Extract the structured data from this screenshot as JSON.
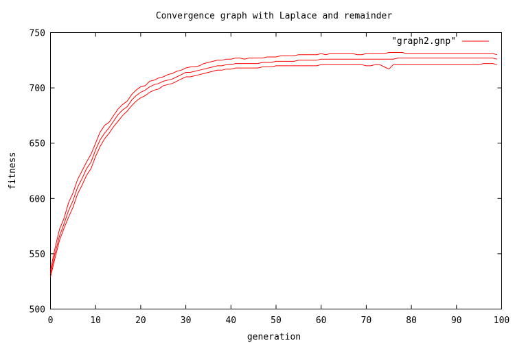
{
  "chart_data": {
    "type": "line",
    "title": "Convergence graph with Laplace and remainder",
    "xlabel": "generation",
    "ylabel": "fitness",
    "xlim": [
      0,
      100
    ],
    "ylim": [
      500,
      750
    ],
    "xticks": [
      0,
      10,
      20,
      30,
      40,
      50,
      60,
      70,
      80,
      90,
      100
    ],
    "yticks": [
      500,
      550,
      600,
      650,
      700,
      750
    ],
    "grid": false,
    "legend_position": "top-right",
    "line_color": "#ff0000",
    "series": [
      {
        "name": "\"graph2.gnp\"",
        "x": [
          0,
          1,
          2,
          3,
          4,
          5,
          6,
          7,
          8,
          9,
          10,
          11,
          12,
          13,
          14,
          15,
          16,
          17,
          18,
          19,
          20,
          21,
          22,
          23,
          24,
          25,
          26,
          27,
          28,
          29,
          30,
          31,
          32,
          33,
          34,
          35,
          36,
          37,
          38,
          39,
          40,
          41,
          42,
          43,
          44,
          45,
          46,
          47,
          48,
          49,
          50,
          51,
          52,
          53,
          54,
          55,
          56,
          57,
          58,
          59,
          60,
          61,
          62,
          63,
          64,
          65,
          66,
          67,
          68,
          69,
          70,
          71,
          72,
          73,
          74,
          75,
          76,
          77,
          78,
          79,
          80,
          81,
          82,
          83,
          84,
          85,
          86,
          87,
          88,
          89,
          90,
          91,
          92,
          93,
          94,
          95,
          96,
          97,
          98,
          99
        ],
        "upper": [
          535,
          555,
          572,
          582,
          596,
          605,
          617,
          625,
          633,
          640,
          650,
          660,
          666,
          669,
          675,
          681,
          685,
          688,
          694,
          698,
          701,
          702,
          706,
          707,
          709,
          710,
          712,
          713,
          715,
          716,
          718,
          719,
          719,
          720,
          722,
          723,
          724,
          725,
          725,
          726,
          726,
          727,
          727,
          726,
          727,
          727,
          727,
          727,
          728,
          728,
          728,
          729,
          729,
          729,
          729,
          730,
          730,
          730,
          730,
          730,
          731,
          730,
          731,
          731,
          731,
          731,
          731,
          731,
          730,
          730,
          731,
          731,
          731,
          731,
          731,
          732,
          732,
          732,
          732,
          731,
          731,
          731,
          731,
          731,
          731,
          731,
          731,
          731,
          731,
          731,
          731,
          731,
          731,
          731,
          731,
          731,
          731,
          731,
          731,
          730
        ],
        "mean": [
          532,
          550,
          566,
          577,
          589,
          598,
          610,
          618,
          627,
          633,
          644,
          653,
          659,
          664,
          670,
          676,
          680,
          683,
          689,
          693,
          696,
          698,
          701,
          703,
          704,
          706,
          707,
          708,
          710,
          712,
          714,
          714,
          715,
          716,
          717,
          718,
          719,
          720,
          720,
          721,
          721,
          722,
          722,
          722,
          722,
          722,
          722,
          723,
          723,
          723,
          724,
          724,
          724,
          724,
          724,
          725,
          725,
          725,
          725,
          725,
          726,
          726,
          726,
          726,
          726,
          726,
          726,
          726,
          726,
          726,
          726,
          726,
          726,
          726,
          726,
          726,
          726,
          727,
          727,
          727,
          727,
          727,
          727,
          727,
          727,
          727,
          727,
          727,
          727,
          727,
          727,
          727,
          727,
          727,
          727,
          727,
          727,
          727,
          727,
          726
        ],
        "lower": [
          529,
          546,
          562,
          573,
          583,
          592,
          604,
          612,
          621,
          627,
          638,
          647,
          654,
          659,
          665,
          670,
          675,
          679,
          684,
          688,
          691,
          693,
          696,
          698,
          699,
          702,
          703,
          704,
          706,
          708,
          710,
          710,
          711,
          712,
          713,
          714,
          715,
          716,
          716,
          717,
          717,
          718,
          718,
          718,
          718,
          718,
          718,
          719,
          719,
          719,
          720,
          720,
          720,
          720,
          720,
          720,
          720,
          720,
          720,
          720,
          721,
          721,
          721,
          721,
          721,
          721,
          721,
          721,
          721,
          721,
          720,
          720,
          721,
          721,
          719,
          717,
          721,
          721,
          721,
          721,
          721,
          721,
          721,
          721,
          721,
          721,
          721,
          721,
          721,
          721,
          721,
          721,
          721,
          721,
          721,
          721,
          722,
          722,
          722,
          721
        ]
      }
    ]
  }
}
